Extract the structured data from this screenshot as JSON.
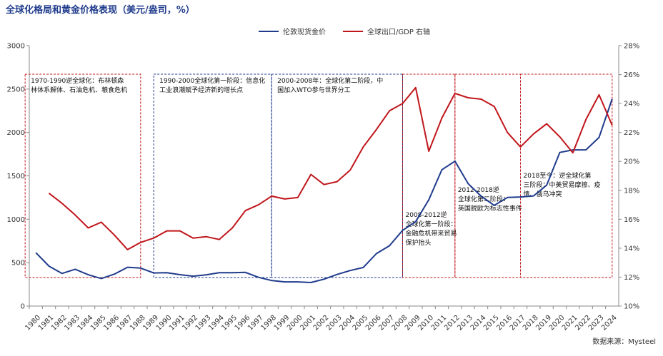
{
  "chart_data": {
    "type": "line",
    "title": "全球化格局和黄金价格表现（美元/盎司，%）",
    "source": "数据来源：Mysteel",
    "legend_position": "top-center",
    "legend": [
      {
        "label": "伦敦现货金价"
      },
      {
        "label": "全球出口/GDP"
      },
      {
        "label": "右轴"
      }
    ],
    "x": [
      "1980",
      "1981",
      "1982",
      "1983",
      "1984",
      "1985",
      "1986",
      "1987",
      "1988",
      "1989",
      "1990",
      "1991",
      "1992",
      "1993",
      "1994",
      "1995",
      "1996",
      "1997",
      "1998",
      "1999",
      "2000",
      "2001",
      "2002",
      "2003",
      "2004",
      "2005",
      "2006",
      "2007",
      "2008",
      "2009",
      "2010",
      "2011",
      "2012",
      "2013",
      "2014",
      "2015",
      "2016",
      "2017",
      "2018",
      "2019",
      "2020",
      "2021",
      "2022",
      "2023",
      "2024"
    ],
    "y_left": {
      "min": 0,
      "max": 3000,
      "ticks": [
        "0",
        "500",
        "1000",
        "1500",
        "2000",
        "2500",
        "3000"
      ]
    },
    "y_right": {
      "min": 10,
      "max": 28,
      "ticks": [
        "10%",
        "12%",
        "14%",
        "16%",
        "18%",
        "20%",
        "22%",
        "24%",
        "26%",
        "28%"
      ]
    },
    "series": [
      {
        "name": "伦敦现货金价",
        "axis": "left",
        "color": "#1f3b8c",
        "values": [
          615,
          460,
          376,
          424,
          361,
          317,
          368,
          447,
          437,
          381,
          384,
          362,
          344,
          360,
          384,
          384,
          388,
          331,
          294,
          279,
          279,
          271,
          310,
          364,
          409,
          445,
          604,
          695,
          872,
          972,
          1225,
          1571,
          1669,
          1411,
          1266,
          1160,
          1251,
          1257,
          1269,
          1393,
          1770,
          1799,
          1800,
          1943,
          2386
        ]
      },
      {
        "name": "全球出口/GDP",
        "axis": "right",
        "color": "#c0161b",
        "values": [
          null,
          17.8,
          17.1,
          16.3,
          15.4,
          15.8,
          14.9,
          13.9,
          14.4,
          14.7,
          15.2,
          15.2,
          14.7,
          14.8,
          14.6,
          15.4,
          16.6,
          17.0,
          17.6,
          17.4,
          17.5,
          19.1,
          18.4,
          18.6,
          19.4,
          21.0,
          22.2,
          23.5,
          24.0,
          25.1,
          20.7,
          23.0,
          24.7,
          24.4,
          24.3,
          23.8,
          22.0,
          21.0,
          21.9,
          22.6,
          21.7,
          20.6,
          22.9,
          24.6,
          22.5
        ]
      }
    ],
    "annotations": [
      {
        "label": "1970-1990逆全球化：布林顿森林体系解体、石油危机、粮食危机",
        "x_start": "1980",
        "x_end": "1988",
        "color": "#c0161b"
      },
      {
        "label": "1990-2000全球化第一阶段：信息化工业浪潮赋予经济新的增长点",
        "x_start": "1989",
        "x_end": "1998",
        "color": "#1f3b8c"
      },
      {
        "label": "2000-2008年：全球化第二阶段，中国加入WTO参与世界分工",
        "x_start": "1998",
        "x_end": "2008",
        "color": "#1f3b8c"
      },
      {
        "label": "2008-2012逆全球化第一阶段：金融危机带来贸易保护抬头",
        "x_start": "2008",
        "x_end": "2012",
        "color": "#c0161b"
      },
      {
        "label": "2012-2018逆全球化第二阶段：英国脱欧为标志性事件",
        "x_start": "2012",
        "x_end": "2017",
        "color": "#c0161b"
      },
      {
        "label": "2018至今：逆全球化第三阶段：中美贸易摩擦、疫情、俄乌冲突",
        "x_start": "2017",
        "x_end": "2024",
        "color": "#c0161b"
      }
    ]
  }
}
